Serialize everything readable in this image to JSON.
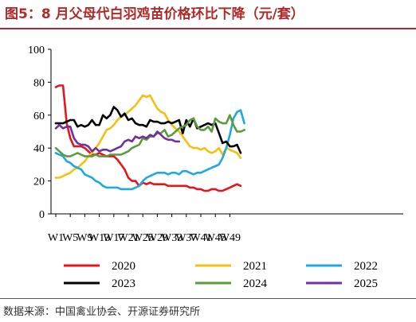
{
  "title": "图5：8 月父母代白羽鸡苗价格环比下降（元/套）",
  "source": "数据来源：中国禽业协会、开源证券研究所",
  "chart_data": {
    "type": "line",
    "ylim": [
      0,
      100
    ],
    "y_ticks": [
      "0",
      "20",
      "40",
      "60",
      "80",
      "100"
    ],
    "x_ticks": [
      "W1",
      "W5",
      "W9",
      "W13",
      "W17",
      "W21",
      "W25",
      "W29",
      "W33",
      "W37",
      "W41",
      "W45",
      "W49"
    ],
    "series": [
      {
        "name": "2020",
        "color": "#e8141b",
        "values": [
          77,
          78,
          78,
          55,
          46,
          41,
          41,
          41,
          40,
          38,
          36,
          36,
          37,
          36,
          35,
          35,
          35,
          33,
          30,
          27,
          22,
          20,
          20,
          17,
          19,
          18,
          19,
          18,
          18,
          18,
          18,
          17,
          17,
          17,
          17,
          17,
          17,
          16,
          16,
          15,
          15,
          14,
          14,
          15,
          15,
          14,
          14,
          15,
          16,
          17,
          18,
          17
        ]
      },
      {
        "name": "2021",
        "color": "#f5c00f",
        "values": [
          22,
          22,
          23,
          24,
          25,
          27,
          28,
          30,
          32,
          35,
          37,
          40,
          43,
          47,
          51,
          52,
          54,
          57,
          59,
          60,
          62,
          64,
          66,
          69,
          72,
          71,
          72,
          68,
          64,
          62,
          61,
          57,
          54,
          52,
          50,
          47,
          44,
          41,
          40,
          40,
          39,
          40,
          38,
          37,
          38,
          40,
          36,
          40,
          39,
          38,
          37,
          34
        ]
      },
      {
        "name": "2022",
        "color": "#1fa9e0",
        "values": [
          37,
          36,
          35,
          32,
          31,
          29,
          28,
          27,
          24,
          23,
          22,
          20,
          19,
          17,
          16,
          16,
          16,
          16,
          15,
          15,
          15,
          15,
          16,
          17,
          20,
          22,
          23,
          24,
          25,
          25,
          25,
          24,
          25,
          25,
          24,
          26,
          26,
          25,
          24,
          25,
          25,
          26,
          27,
          28,
          29,
          30,
          34,
          40,
          48,
          58,
          62,
          63,
          55
        ]
      },
      {
        "name": "2023",
        "color": "#000000",
        "values": [
          55,
          55,
          55,
          56,
          57,
          57,
          53,
          54,
          53,
          54,
          57,
          54,
          54,
          60,
          58,
          60,
          65,
          63,
          59,
          61,
          57,
          58,
          55,
          54,
          54,
          53,
          57,
          56,
          56,
          55,
          55,
          56,
          55,
          56,
          57,
          49,
          57,
          53,
          58,
          52,
          53,
          54,
          55,
          54,
          55,
          49,
          43,
          44,
          41,
          41,
          42,
          37
        ]
      },
      {
        "name": "2024",
        "color": "#5a9b3e",
        "values": [
          40,
          38,
          36,
          35,
          35,
          36,
          37,
          36,
          35,
          35,
          35,
          36,
          35,
          35,
          35,
          36,
          36,
          36,
          36,
          37,
          38,
          40,
          41,
          42,
          46,
          45,
          47,
          47,
          49,
          49,
          51,
          47,
          48,
          50,
          52,
          53,
          54,
          57,
          58,
          53,
          51,
          51,
          53,
          50,
          58,
          56,
          55,
          55,
          60,
          54,
          50,
          50,
          51
        ]
      },
      {
        "name": "2025",
        "color": "#7030a0",
        "values": [
          52,
          54,
          52,
          53,
          53,
          46,
          43,
          42,
          42,
          41,
          38,
          40,
          38,
          39,
          39,
          38,
          39,
          40,
          41,
          44,
          45,
          44,
          47,
          46,
          47,
          46,
          48,
          47,
          50,
          48,
          46,
          45,
          45,
          44,
          44
        ]
      }
    ]
  }
}
